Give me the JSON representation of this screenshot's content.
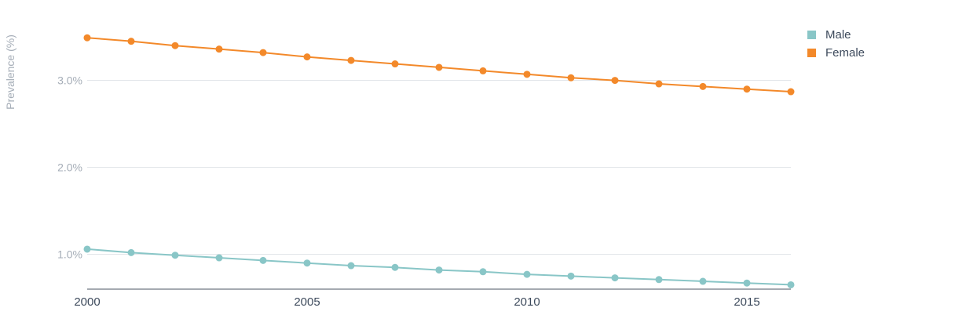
{
  "chart_data": {
    "type": "line",
    "title": "",
    "xlabel": "",
    "ylabel": "Prevalence (%)",
    "x": [
      2000,
      2001,
      2002,
      2003,
      2004,
      2005,
      2006,
      2007,
      2008,
      2009,
      2010,
      2011,
      2012,
      2013,
      2014,
      2015,
      2016
    ],
    "x_ticks": [
      "2000",
      "2005",
      "2010",
      "2015"
    ],
    "y_ticks": [
      "1.0%",
      "2.0%",
      "3.0%"
    ],
    "y_tick_values": [
      1.0,
      2.0,
      3.0
    ],
    "xlim": [
      2000,
      2016
    ],
    "ylim": [
      0.6,
      3.6
    ],
    "grid": "horizontal",
    "legend_position": "top-right",
    "series": [
      {
        "name": "Male",
        "color": "#89c6c7",
        "values": [
          1.06,
          1.02,
          0.99,
          0.96,
          0.93,
          0.9,
          0.87,
          0.85,
          0.82,
          0.8,
          0.77,
          0.75,
          0.73,
          0.71,
          0.69,
          0.67,
          0.65
        ]
      },
      {
        "name": "Female",
        "color": "#f3892a",
        "values": [
          3.49,
          3.45,
          3.4,
          3.36,
          3.32,
          3.27,
          3.23,
          3.19,
          3.15,
          3.11,
          3.07,
          3.03,
          3.0,
          2.96,
          2.93,
          2.9,
          2.87
        ]
      }
    ]
  }
}
